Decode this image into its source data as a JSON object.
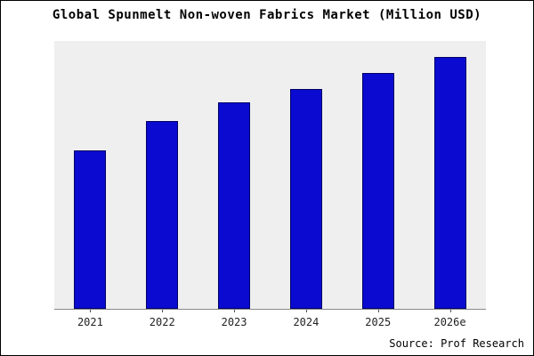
{
  "frame": {
    "title": "Global Spunmelt Non-woven Fabrics Market (Million USD)",
    "source": "Source: Prof Research"
  },
  "chart_data": {
    "type": "bar",
    "title": "Global Spunmelt Non-woven Fabrics Market (Million USD)",
    "categories": [
      "2021",
      "2022",
      "2023",
      "2024",
      "2025",
      "2026e"
    ],
    "values": [
      59,
      70,
      77,
      82,
      88,
      94
    ],
    "xlabel": "",
    "ylabel": "",
    "ylim": [
      0,
      100
    ],
    "grid": false,
    "legend": false,
    "bar_color": "#0a0ad0",
    "bar_edge_color": "#000066",
    "plot_background": "#efefef",
    "source_label": "Source: Prof Research"
  }
}
